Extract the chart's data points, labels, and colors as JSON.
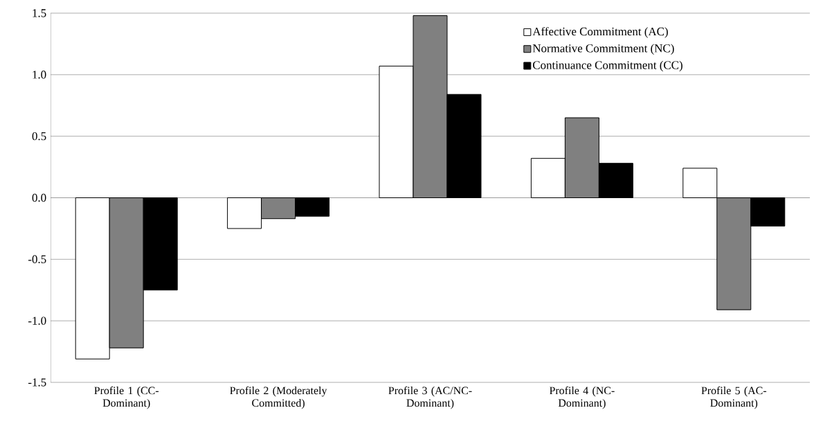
{
  "chart_data": {
    "type": "bar",
    "categories": [
      "Profile 1 (CC-Dominant)",
      "Profile 2 (Moderately Committed)",
      "Profile 3 (AC/NC-Dominant)",
      "Profile 4 (NC-Dominant)",
      "Profile 5 (AC-Dominant)"
    ],
    "series": [
      {
        "name": "Affective Commitment (AC)",
        "color": "#ffffff",
        "values": [
          -1.31,
          -0.25,
          1.07,
          0.32,
          0.24
        ]
      },
      {
        "name": "Normative Commitment (NC)",
        "color": "#808080",
        "values": [
          -1.22,
          -0.17,
          1.48,
          0.65,
          -0.91
        ]
      },
      {
        "name": "Continuance Commitment (CC)",
        "color": "#000000",
        "values": [
          -0.75,
          -0.15,
          0.84,
          0.28,
          -0.23
        ]
      }
    ],
    "ylim": [
      -1.5,
      1.5
    ],
    "yticks": [
      {
        "value": -1.5,
        "label": "-1.5"
      },
      {
        "value": -1.0,
        "label": "-1.0"
      },
      {
        "value": -0.5,
        "label": "-0.5"
      },
      {
        "value": 0,
        "label": "0.0"
      },
      {
        "value": 0.5,
        "label": "0.5"
      },
      {
        "value": 1.0,
        "label": "1.0"
      },
      {
        "value": 1.5,
        "label": "1.5"
      }
    ],
    "grid": "y",
    "legend": "top right"
  }
}
